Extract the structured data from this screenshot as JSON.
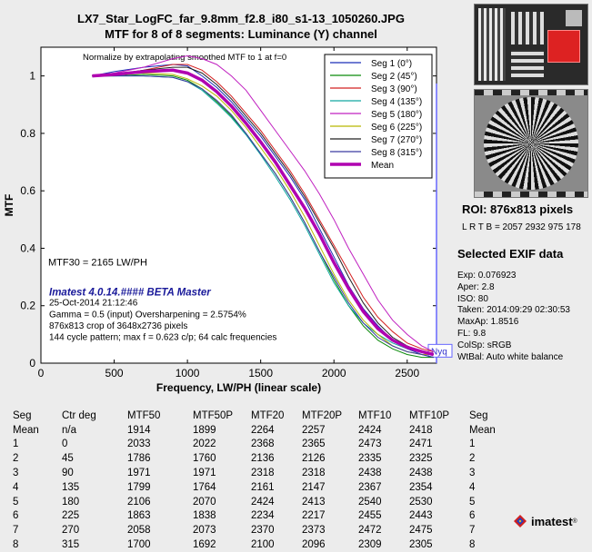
{
  "header": {
    "title": "LX7_Star_LogFC_far_9.8mm_f2.8_i80_s1-13_1050260.JPG",
    "subtitle": "MTF for 8 of 8 segments:  Luminance (Y) channel"
  },
  "chart_data": {
    "type": "line",
    "xlabel": "Frequency, LW/PH (linear scale)",
    "ylabel": "MTF",
    "xlim": [
      0,
      2700
    ],
    "ylim": [
      0,
      1.1
    ],
    "xticks": [
      0,
      500,
      1000,
      1500,
      2000,
      2500
    ],
    "yticks": [
      0,
      0.2,
      0.4,
      0.6,
      0.8,
      1
    ],
    "normalize_note": "Normalize by extrapolating smoothed MTF to 1 at f=0",
    "nyquist_label": "Nyq",
    "nyquist_x": 2700,
    "grid": false,
    "legend": "top-right",
    "x": [
      350,
      500,
      700,
      900,
      1000,
      1100,
      1200,
      1300,
      1400,
      1500,
      1600,
      1700,
      1800,
      1900,
      2000,
      2100,
      2200,
      2300,
      2400,
      2500,
      2600,
      2680
    ],
    "series": [
      {
        "name": "Seg 1 (0°)",
        "color": "#1a2fb8",
        "values": [
          1.0,
          1.015,
          1.03,
          1.04,
          1.035,
          1.0,
          0.96,
          0.91,
          0.85,
          0.79,
          0.72,
          0.65,
          0.57,
          0.47,
          0.37,
          0.27,
          0.19,
          0.13,
          0.08,
          0.05,
          0.03,
          0.02
        ]
      },
      {
        "name": "Seg 2 (45°)",
        "color": "#0a8a0a",
        "values": [
          1.0,
          1.0,
          1.005,
          1.0,
          0.985,
          0.955,
          0.91,
          0.86,
          0.8,
          0.73,
          0.66,
          0.58,
          0.49,
          0.39,
          0.29,
          0.2,
          0.13,
          0.08,
          0.05,
          0.03,
          0.02,
          0.02
        ]
      },
      {
        "name": "Seg 3 (90°)",
        "color": "#d42020",
        "values": [
          1.0,
          1.005,
          1.02,
          1.04,
          1.04,
          1.02,
          0.98,
          0.93,
          0.87,
          0.81,
          0.74,
          0.67,
          0.59,
          0.5,
          0.41,
          0.32,
          0.23,
          0.16,
          0.11,
          0.07,
          0.05,
          0.04
        ]
      },
      {
        "name": "Seg 4 (135°)",
        "color": "#10a8a0",
        "values": [
          1.0,
          1.0,
          1.0,
          0.995,
          0.98,
          0.95,
          0.905,
          0.855,
          0.795,
          0.725,
          0.65,
          0.57,
          0.48,
          0.38,
          0.28,
          0.2,
          0.14,
          0.1,
          0.07,
          0.05,
          0.04,
          0.03
        ]
      },
      {
        "name": "Seg 5 (180°)",
        "color": "#c020c0",
        "values": [
          1.0,
          1.01,
          1.03,
          1.06,
          1.07,
          1.06,
          1.04,
          1.0,
          0.95,
          0.88,
          0.81,
          0.74,
          0.67,
          0.59,
          0.5,
          0.4,
          0.31,
          0.22,
          0.15,
          0.1,
          0.06,
          0.04
        ]
      },
      {
        "name": "Seg 6 (225°)",
        "color": "#b8b800",
        "values": [
          1.0,
          1.005,
          1.01,
          1.005,
          0.99,
          0.965,
          0.93,
          0.88,
          0.82,
          0.75,
          0.68,
          0.6,
          0.51,
          0.41,
          0.31,
          0.22,
          0.15,
          0.1,
          0.06,
          0.04,
          0.03,
          0.03
        ]
      },
      {
        "name": "Seg 7 (270°)",
        "color": "#202020",
        "values": [
          1.0,
          1.005,
          1.02,
          1.03,
          1.03,
          1.01,
          0.97,
          0.92,
          0.86,
          0.8,
          0.73,
          0.66,
          0.58,
          0.49,
          0.4,
          0.3,
          0.21,
          0.14,
          0.09,
          0.06,
          0.04,
          0.03
        ]
      },
      {
        "name": "Seg 8 (315°)",
        "color": "#3a3aa0",
        "values": [
          1.0,
          1.0,
          1.0,
          0.995,
          0.98,
          0.955,
          0.915,
          0.865,
          0.8,
          0.73,
          0.66,
          0.58,
          0.49,
          0.39,
          0.3,
          0.21,
          0.14,
          0.09,
          0.06,
          0.04,
          0.03,
          0.02
        ]
      },
      {
        "name": "Mean",
        "color": "#b000b0",
        "values": [
          1.0,
          1.005,
          1.015,
          1.02,
          1.01,
          0.985,
          0.945,
          0.895,
          0.835,
          0.77,
          0.7,
          0.62,
          0.54,
          0.45,
          0.35,
          0.26,
          0.18,
          0.12,
          0.08,
          0.055,
          0.04,
          0.03
        ],
        "bold": true
      }
    ],
    "annotations": {
      "mtf30": "MTF30 = 2165 LW/PH",
      "version": "Imatest 4.0.14.#### BETA Master",
      "date": "25-Oct-2014 21:12:46",
      "gamma": "Gamma = 0.5 (input)  Oversharpening = 2.5754%",
      "crop": "876x813 crop of 3648x2736 pixels",
      "pattern": "144 cycle pattern;  max f = 0.623 c/p;  64 calc frequencies"
    }
  },
  "roi": {
    "title": "ROI:  876x813 pixels",
    "coords": "L R T B = 2057 2932  975 178"
  },
  "exif": {
    "title": "Selected EXIF data",
    "lines": [
      "Exp:  0.076923",
      "Aper:  2.8",
      "ISO:  80",
      "Taken: 2014:09:29 02:30:53",
      "MaxAp: 1.8516",
      "FL:  9.8",
      "ColSp: sRGB",
      "WtBal: Auto white balance"
    ]
  },
  "table": {
    "headers": [
      "Seg",
      "Ctr deg",
      "MTF50",
      "MTF50P",
      "MTF20",
      "MTF20P",
      "MTF10",
      "MTF10P",
      "Seg"
    ],
    "rows": [
      [
        "Mean",
        "n/a",
        "1914",
        "1899",
        "2264",
        "2257",
        "2424",
        "2418",
        "Mean"
      ],
      [
        "1",
        "0",
        "2033",
        "2022",
        "2368",
        "2365",
        "2473",
        "2471",
        "1"
      ],
      [
        "2",
        "45",
        "1786",
        "1760",
        "2136",
        "2126",
        "2335",
        "2325",
        "2"
      ],
      [
        "3",
        "90",
        "1971",
        "1971",
        "2318",
        "2318",
        "2438",
        "2438",
        "3"
      ],
      [
        "4",
        "135",
        "1799",
        "1764",
        "2161",
        "2147",
        "2367",
        "2354",
        "4"
      ],
      [
        "5",
        "180",
        "2106",
        "2070",
        "2424",
        "2413",
        "2540",
        "2530",
        "5"
      ],
      [
        "6",
        "225",
        "1863",
        "1838",
        "2234",
        "2217",
        "2455",
        "2443",
        "6"
      ],
      [
        "7",
        "270",
        "2058",
        "2073",
        "2370",
        "2373",
        "2472",
        "2475",
        "7"
      ],
      [
        "8",
        "315",
        "1700",
        "1692",
        "2100",
        "2096",
        "2309",
        "2305",
        "8"
      ]
    ]
  },
  "logo": {
    "text": "imatest",
    "mark": "®"
  }
}
